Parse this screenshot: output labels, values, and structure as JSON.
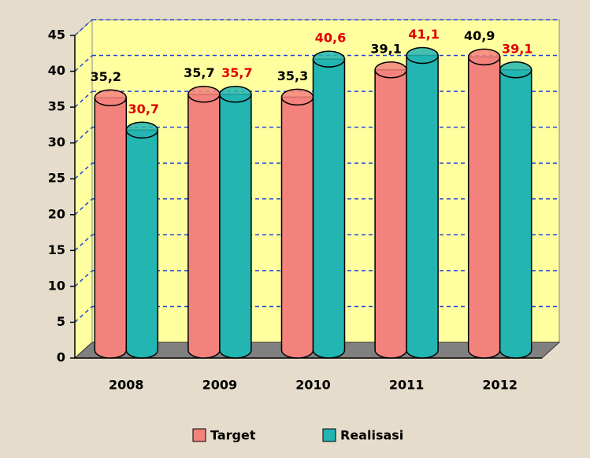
{
  "chart_data": {
    "type": "bar3d",
    "categories": [
      "2008",
      "2009",
      "2010",
      "2011",
      "2012"
    ],
    "series": [
      {
        "name": "Target",
        "color": "#f4827c",
        "label_color": "#000000",
        "values": [
          35.2,
          35.7,
          35.3,
          39.1,
          40.9
        ],
        "value_labels": [
          "35,2",
          "35,7",
          "35,3",
          "39,1",
          "40,9"
        ]
      },
      {
        "name": "Realisasi",
        "color": "#22b5b2",
        "label_color": "#e00000",
        "values": [
          30.7,
          35.7,
          40.6,
          41.1,
          39.1
        ],
        "value_labels": [
          "30,7",
          "35,7",
          "40,6",
          "41,1",
          "39,1"
        ]
      }
    ],
    "ylim": [
      0,
      45
    ],
    "yticks": [
      0,
      5,
      10,
      15,
      20,
      25,
      30,
      35,
      40,
      45
    ],
    "grid": true
  }
}
